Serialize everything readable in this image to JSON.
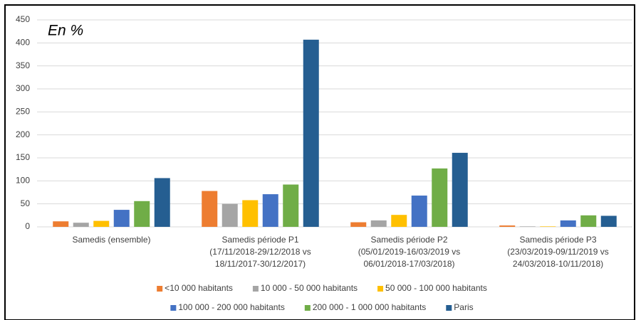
{
  "chart_data": {
    "type": "bar",
    "annotation": "En %",
    "categories": [
      "Samedis (ensemble)",
      "Samedis période P1\n(17/11/2018-29/12/2018 vs\n18/11/2017-30/12/2017)",
      "Samedis période P2\n(05/01/2019-16/03/2019 vs\n06/01/2018-17/03/2018)",
      "Samedis période P3\n(23/03/2019-09/11/2019 vs\n24/03/2018-10/11/2018)"
    ],
    "series": [
      {
        "name": "<10 000 habitants",
        "color": "#ed7d31",
        "values": [
          12,
          78,
          10,
          3
        ]
      },
      {
        "name": "10 000 - 50 000 habitants",
        "color": "#a5a5a5",
        "values": [
          9,
          50,
          14,
          1
        ]
      },
      {
        "name": "50 000 - 100 000 habitants",
        "color": "#ffc000",
        "values": [
          13,
          58,
          26,
          1
        ]
      },
      {
        "name": "100 000 - 200 000 habitants",
        "color": "#4472c4",
        "values": [
          37,
          71,
          68,
          14
        ]
      },
      {
        "name": "200 000 - 1 000 000 habitants",
        "color": "#70ad47",
        "values": [
          56,
          92,
          127,
          25
        ]
      },
      {
        "name": "Paris",
        "color": "#255e91",
        "values": [
          106,
          407,
          161,
          24
        ]
      }
    ],
    "ylim": [
      0,
      450
    ],
    "yticks": [
      0,
      50,
      100,
      150,
      200,
      250,
      300,
      350,
      400,
      450
    ],
    "grid": true
  }
}
